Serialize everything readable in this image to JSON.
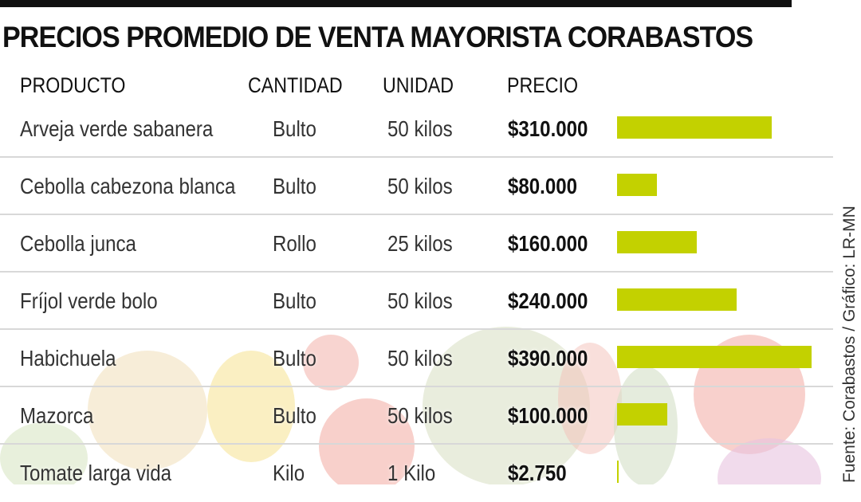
{
  "title": "PRECIOS PROMEDIO DE VENTA MAYORISTA CORABASTOS",
  "headers": {
    "producto": "PRODUCTO",
    "cantidad": "CANTIDAD",
    "unidad": "UNIDAD",
    "precio": "PRECIO"
  },
  "source": "Fuente: Corabastos / Gráfico: LR-MN",
  "bar_color": "#c3d100",
  "chart_data": {
    "type": "table",
    "title": "PRECIOS PROMEDIO DE VENTA MAYORISTA CORABASTOS",
    "columns": [
      "PRODUCTO",
      "CANTIDAD",
      "UNIDAD",
      "PRECIO"
    ],
    "rows": [
      {
        "producto": "Arveja verde sabanera",
        "cantidad": "Bulto",
        "unidad": "50 kilos",
        "precio": "$310.000",
        "value": 310000
      },
      {
        "producto": "Cebolla cabezona blanca",
        "cantidad": "Bulto",
        "unidad": "50 kilos",
        "precio": "$80.000",
        "value": 80000
      },
      {
        "producto": "Cebolla junca",
        "cantidad": "Rollo",
        "unidad": "25 kilos",
        "precio": "$160.000",
        "value": 160000
      },
      {
        "producto": "Fríjol verde bolo",
        "cantidad": "Bulto",
        "unidad": "50 kilos",
        "precio": "$240.000",
        "value": 240000
      },
      {
        "producto": "Habichuela",
        "cantidad": "Bulto",
        "unidad": "50 kilos",
        "precio": "$390.000",
        "value": 390000
      },
      {
        "producto": "Mazorca",
        "cantidad": "Bulto",
        "unidad": "50 kilos",
        "precio": "$100.000",
        "value": 100000
      },
      {
        "producto": "Tomate larga vida",
        "cantidad": "Kilo",
        "unidad": "1 Kilo",
        "precio": "$2.750",
        "value": 2750
      }
    ],
    "bar_max": 390000
  }
}
